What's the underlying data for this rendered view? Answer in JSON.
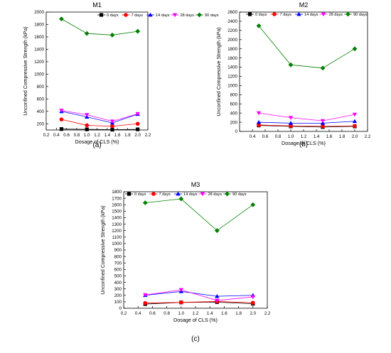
{
  "chart_data": [
    {
      "type": "line",
      "title": "M1",
      "panel_label": "(a)",
      "xlabel": "Dosage of CLS (%)",
      "ylabel": "Unconfined Compressive Strength (kPa)",
      "xlim": [
        0.2,
        2.2
      ],
      "ylim": [
        100,
        2000
      ],
      "xticks": [
        0.2,
        0.4,
        0.6,
        0.8,
        1.0,
        1.2,
        1.4,
        1.6,
        1.8,
        2.0,
        2.2
      ],
      "xtick_labels": [
        "0.2",
        "0.4",
        "0.6",
        "0.8",
        "1.0",
        "1.2",
        "1.4",
        "1.6",
        "1.8",
        "2.0",
        "2.2"
      ],
      "yticks": [
        200,
        400,
        600,
        800,
        1000,
        1200,
        1400,
        1600,
        1800,
        2000
      ],
      "ytick_labels": [
        "200",
        "400",
        "600",
        "800",
        "1000",
        "1200",
        "1400",
        "1600",
        "1800",
        "2000"
      ],
      "x": [
        0.5,
        1.0,
        1.5,
        2.0
      ],
      "legend_position": "top-right",
      "grid": false,
      "series": [
        {
          "name": "0 days",
          "color": "#000000",
          "marker": "square",
          "values": [
            115,
            110,
            105,
            110
          ]
        },
        {
          "name": "7 days",
          "color": "#ff0000",
          "marker": "circle",
          "values": [
            270,
            175,
            160,
            200
          ]
        },
        {
          "name": "14 days",
          "color": "#0000ff",
          "marker": "triangle-up",
          "values": [
            400,
            310,
            215,
            355
          ]
        },
        {
          "name": "28 days",
          "color": "#ff00ff",
          "marker": "triangle-down",
          "values": [
            415,
            345,
            240,
            360
          ]
        },
        {
          "name": "90 days",
          "color": "#008000",
          "marker": "diamond",
          "values": [
            1890,
            1655,
            1630,
            1690
          ]
        }
      ]
    },
    {
      "type": "line",
      "title": "M2",
      "panel_label": "(b)",
      "xlabel": "Dosage of CLS (%)",
      "ylabel": "Unconfined Compressive Strength (kPa)",
      "xlim": [
        0.2,
        2.2
      ],
      "ylim": [
        0,
        2600
      ],
      "xticks": [
        0.4,
        0.6,
        0.8,
        1.0,
        1.2,
        1.4,
        1.6,
        1.8,
        2.0,
        2.2
      ],
      "xtick_labels": [
        "0.4",
        "0.6",
        "0.8",
        "1.0",
        "1.2",
        "1.4",
        "1.6",
        "1.8",
        "2.0",
        "2.2"
      ],
      "yticks": [
        0,
        200,
        400,
        600,
        800,
        1000,
        1200,
        1400,
        1600,
        1800,
        2000,
        2200,
        2400,
        2600
      ],
      "ytick_labels": [
        "0",
        "200",
        "400",
        "600",
        "800",
        "1000",
        "1200",
        "1400",
        "1600",
        "1800",
        "2000",
        "2200",
        "2400",
        "2600"
      ],
      "x": [
        0.5,
        1.0,
        1.5,
        2.0
      ],
      "legend_position": "top-right",
      "grid": false,
      "series": [
        {
          "name": "0 days",
          "color": "#000000",
          "marker": "square",
          "values": [
            130,
            110,
            95,
            110
          ]
        },
        {
          "name": "7 days",
          "color": "#ff0000",
          "marker": "circle",
          "values": [
            140,
            120,
            110,
            120
          ]
        },
        {
          "name": "14 days",
          "color": "#0000ff",
          "marker": "triangle-up",
          "values": [
            200,
            180,
            180,
            220
          ]
        },
        {
          "name": "28 days",
          "color": "#ff00ff",
          "marker": "triangle-down",
          "values": [
            400,
            300,
            230,
            370
          ]
        },
        {
          "name": "90 days",
          "color": "#008000",
          "marker": "diamond",
          "values": [
            2300,
            1450,
            1380,
            1800
          ]
        }
      ]
    },
    {
      "type": "line",
      "title": "M3",
      "panel_label": "(c)",
      "xlabel": "Dosage of CLS (%)",
      "ylabel": "Unconfined Compressive Strength (kPa)",
      "xlim": [
        0.2,
        2.2
      ],
      "ylim": [
        0,
        1800
      ],
      "xticks": [
        0.2,
        0.4,
        0.6,
        0.8,
        1.0,
        1.2,
        1.4,
        1.6,
        1.8,
        2.0,
        2.2
      ],
      "xtick_labels": [
        "0.2",
        "0.4",
        "0.6",
        "0.8",
        "1.0",
        "1.2",
        "1.4",
        "1.6",
        "1.8",
        "2.0",
        "2.2"
      ],
      "yticks": [
        0,
        100,
        200,
        300,
        400,
        500,
        600,
        700,
        800,
        900,
        1000,
        1100,
        1200,
        1300,
        1400,
        1500,
        1600,
        1700,
        1800
      ],
      "ytick_labels": [
        "0",
        "100",
        "200",
        "300",
        "400",
        "500",
        "600",
        "700",
        "800",
        "900",
        "1000",
        "1100",
        "1200",
        "1300",
        "1400",
        "1500",
        "1600",
        "1700",
        "1800"
      ],
      "x": [
        0.5,
        1.0,
        1.5,
        2.0
      ],
      "legend_position": "top-right",
      "grid": false,
      "series": [
        {
          "name": "0 days",
          "color": "#000000",
          "marker": "square",
          "values": [
            65,
            90,
            95,
            70
          ]
        },
        {
          "name": "7 days",
          "color": "#ff0000",
          "marker": "circle",
          "values": [
            80,
            90,
            105,
            85
          ]
        },
        {
          "name": "14 days",
          "color": "#0000ff",
          "marker": "triangle-up",
          "values": [
            200,
            260,
            185,
            200
          ]
        },
        {
          "name": "28 days",
          "color": "#ff00ff",
          "marker": "triangle-down",
          "values": [
            205,
            285,
            120,
            175
          ]
        },
        {
          "name": "90 days",
          "color": "#008000",
          "marker": "diamond",
          "values": [
            1630,
            1690,
            1200,
            1600
          ]
        }
      ]
    }
  ]
}
